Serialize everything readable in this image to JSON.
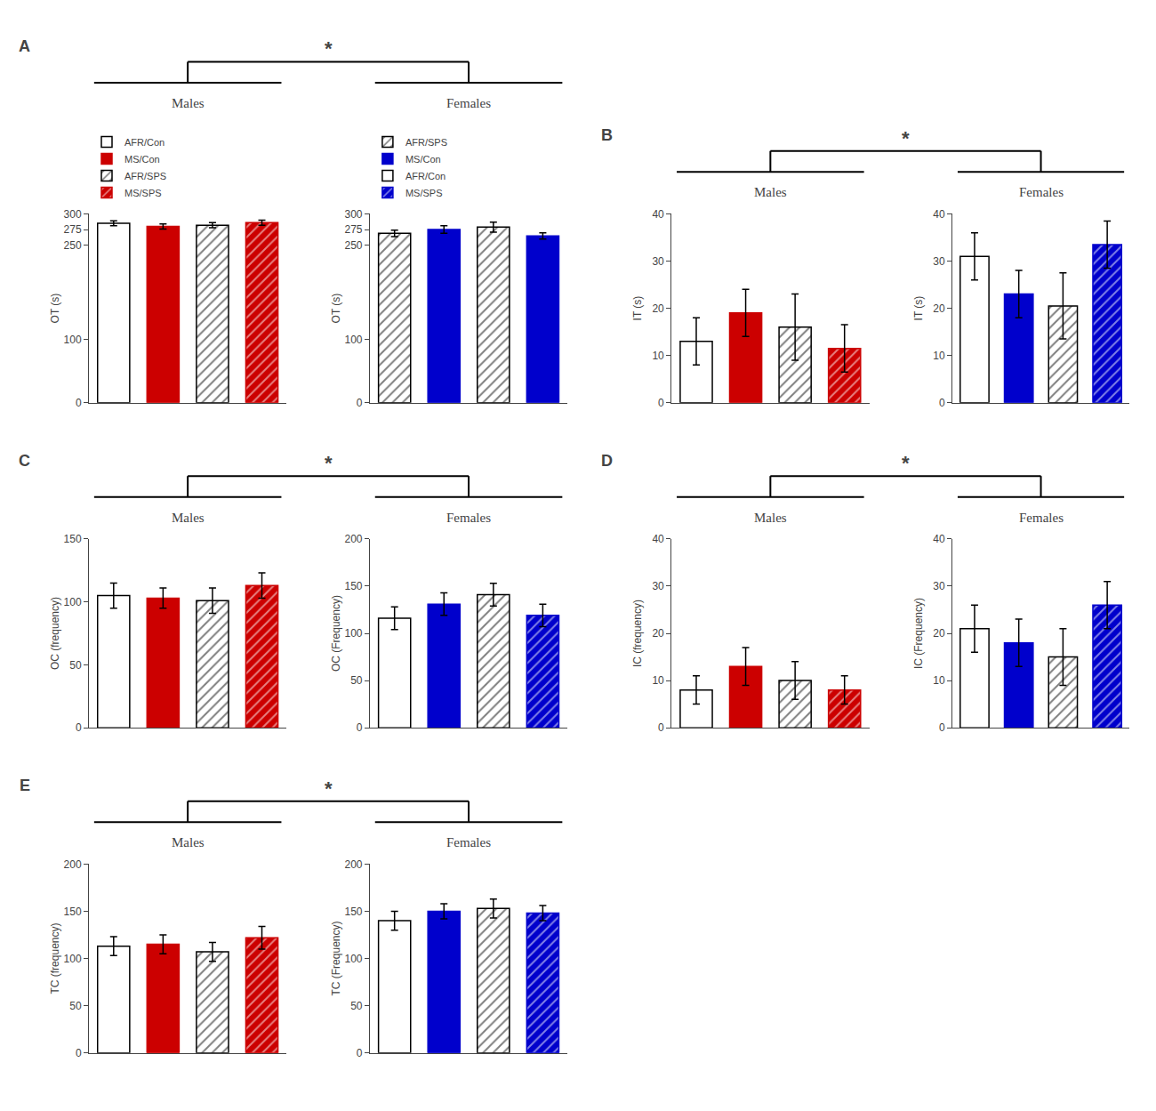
{
  "chart_data": [
    {
      "type": "bar",
      "title": "Males",
      "ylabel": "OT (s)",
      "categories": [
        null,
        null,
        null,
        null
      ],
      "ylim": [
        0,
        300
      ],
      "yticks": [
        0,
        100,
        250,
        275,
        300
      ],
      "grid": false,
      "tick_labels": "y",
      "legend": "top",
      "annotations": [
        "A",
        "*"
      ],
      "series": [
        {
          "name": "AFR/Con",
          "color": "white",
          "marker": "solid",
          "values": [
            285,
            null,
            null,
            null
          ],
          "errors": [
            4,
            null,
            null,
            null
          ]
        },
        {
          "name": "MS/Con",
          "color": "#cc0000",
          "marker": "solid",
          "values": [
            null,
            280,
            null,
            null
          ],
          "errors": [
            null,
            4,
            null,
            null
          ]
        },
        {
          "name": "AFR/SPS",
          "color": "white",
          "marker": "hatched",
          "values": [
            null,
            null,
            282,
            null
          ],
          "errors": [
            null,
            null,
            4,
            null
          ]
        },
        {
          "name": "MS/SPS",
          "color": "#cc0000",
          "marker": "hatched",
          "values": [
            null,
            null,
            null,
            286
          ],
          "errors": [
            null,
            null,
            null,
            4
          ]
        }
      ]
    },
    {
      "type": "bar",
      "title": "Females",
      "ylabel": "OT (s)",
      "categories": [
        null,
        null,
        null,
        null
      ],
      "ylim": [
        0,
        300
      ],
      "yticks": [
        0,
        100,
        250,
        275,
        300
      ],
      "grid": false,
      "tick_labels": "y",
      "legend": "top",
      "series": [
        {
          "name": "AFR/SPS",
          "color": "white",
          "marker": "hatched",
          "values": [
            269,
            null,
            279,
            null
          ],
          "errors": [
            5,
            null,
            8,
            null
          ]
        },
        {
          "name": "MS/Con",
          "color": "#0000cc",
          "marker": "solid",
          "values": [
            null,
            275,
            null,
            265
          ],
          "errors": [
            null,
            6,
            null,
            5
          ]
        },
        {
          "name": "AFR/Con",
          "color": "white",
          "marker": "solid",
          "values": [
            null,
            null,
            null,
            null
          ],
          "errors": [
            null,
            null,
            null,
            null
          ]
        },
        {
          "name": "MS/SPS",
          "color": "#0000cc",
          "marker": "hatched",
          "values": [
            null,
            null,
            null,
            null
          ],
          "errors": [
            null,
            null,
            null,
            null
          ]
        }
      ]
    },
    {
      "type": "bar",
      "title": "Males",
      "ylabel": "IT (s)",
      "categories": [
        null,
        null,
        null,
        null
      ],
      "ylim": [
        0,
        40
      ],
      "yticks": [
        0,
        10,
        20,
        30,
        40
      ],
      "grid": false,
      "tick_labels": "y",
      "annotations": [
        "B",
        "*"
      ],
      "series": [
        {
          "color": "white",
          "marker": "solid",
          "values": [
            13,
            null,
            null,
            null
          ],
          "errors": [
            5,
            null,
            null,
            null
          ]
        },
        {
          "color": "#cc0000",
          "marker": "solid",
          "values": [
            null,
            19,
            null,
            null
          ],
          "errors": [
            null,
            5,
            null,
            null
          ]
        },
        {
          "color": "white",
          "marker": "hatched",
          "values": [
            null,
            null,
            16,
            null
          ],
          "errors": [
            null,
            null,
            7,
            null
          ]
        },
        {
          "color": "#cc0000",
          "marker": "hatched",
          "values": [
            null,
            null,
            null,
            11.5
          ],
          "errors": [
            null,
            null,
            null,
            5
          ]
        }
      ]
    },
    {
      "type": "bar",
      "title": "Females",
      "ylabel": "IT (s)",
      "categories": [
        null,
        null,
        null,
        null
      ],
      "ylim": [
        0,
        40
      ],
      "yticks": [
        0,
        10,
        20,
        30,
        40
      ],
      "grid": false,
      "tick_labels": "y",
      "series": [
        {
          "color": "white",
          "marker": "solid",
          "values": [
            31,
            null,
            null,
            null
          ],
          "errors": [
            5,
            null,
            null,
            null
          ]
        },
        {
          "color": "#0000cc",
          "marker": "solid",
          "values": [
            null,
            23,
            null,
            null
          ],
          "errors": [
            null,
            5,
            null,
            null
          ]
        },
        {
          "color": "white",
          "marker": "hatched",
          "values": [
            null,
            null,
            20.5,
            null
          ],
          "errors": [
            null,
            null,
            7,
            null
          ]
        },
        {
          "color": "#0000cc",
          "marker": "hatched",
          "values": [
            null,
            null,
            null,
            33.5
          ],
          "errors": [
            null,
            null,
            null,
            5
          ]
        }
      ]
    },
    {
      "type": "bar",
      "title": "Males",
      "ylabel": "OC (frequency)",
      "categories": [
        null,
        null,
        null,
        null
      ],
      "ylim": [
        0,
        150
      ],
      "yticks": [
        0,
        50,
        100,
        150
      ],
      "grid": false,
      "tick_labels": "y",
      "annotations": [
        "C",
        "*"
      ],
      "series": [
        {
          "color": "white",
          "marker": "solid",
          "values": [
            105,
            null,
            null,
            null
          ],
          "errors": [
            10,
            null,
            null,
            null
          ]
        },
        {
          "color": "#cc0000",
          "marker": "solid",
          "values": [
            null,
            103,
            null,
            null
          ],
          "errors": [
            null,
            8,
            null,
            null
          ]
        },
        {
          "color": "white",
          "marker": "hatched",
          "values": [
            null,
            null,
            101,
            null
          ],
          "errors": [
            null,
            null,
            10,
            null
          ]
        },
        {
          "color": "#cc0000",
          "marker": "hatched",
          "values": [
            null,
            null,
            null,
            113
          ],
          "errors": [
            null,
            null,
            null,
            10
          ]
        }
      ]
    },
    {
      "type": "bar",
      "title": "Females",
      "ylabel": "OC (Frequency)",
      "categories": [
        null,
        null,
        null,
        null
      ],
      "ylim": [
        0,
        200
      ],
      "yticks": [
        0,
        50,
        100,
        150,
        200
      ],
      "grid": false,
      "tick_labels": "y",
      "series": [
        {
          "color": "white",
          "marker": "solid",
          "values": [
            116,
            null,
            null,
            null
          ],
          "errors": [
            12,
            null,
            null,
            null
          ]
        },
        {
          "color": "#0000cc",
          "marker": "solid",
          "values": [
            null,
            131,
            null,
            null
          ],
          "errors": [
            null,
            12,
            null,
            null
          ]
        },
        {
          "color": "white",
          "marker": "hatched",
          "values": [
            null,
            null,
            141,
            null
          ],
          "errors": [
            null,
            null,
            12,
            null
          ]
        },
        {
          "color": "#0000cc",
          "marker": "hatched",
          "values": [
            null,
            null,
            null,
            119
          ],
          "errors": [
            null,
            null,
            null,
            12
          ]
        }
      ]
    },
    {
      "type": "bar",
      "title": "Males",
      "ylabel": "IC (frequency)",
      "categories": [
        null,
        null,
        null,
        null
      ],
      "ylim": [
        0,
        40
      ],
      "yticks": [
        0,
        10,
        20,
        30,
        40
      ],
      "grid": false,
      "tick_labels": "y",
      "annotations": [
        "D",
        "*"
      ],
      "series": [
        {
          "color": "white",
          "marker": "solid",
          "values": [
            8,
            null,
            null,
            null
          ],
          "errors": [
            3,
            null,
            null,
            null
          ]
        },
        {
          "color": "#cc0000",
          "marker": "solid",
          "values": [
            null,
            13,
            null,
            null
          ],
          "errors": [
            null,
            4,
            null,
            null
          ]
        },
        {
          "color": "white",
          "marker": "hatched",
          "values": [
            null,
            null,
            10,
            null
          ],
          "errors": [
            null,
            null,
            4,
            null
          ]
        },
        {
          "color": "#cc0000",
          "marker": "hatched",
          "values": [
            null,
            null,
            null,
            8
          ],
          "errors": [
            null,
            null,
            null,
            3
          ]
        }
      ]
    },
    {
      "type": "bar",
      "title": "Females",
      "ylabel": "IC (Frequency)",
      "categories": [
        null,
        null,
        null,
        null
      ],
      "ylim": [
        0,
        40
      ],
      "yticks": [
        0,
        10,
        20,
        30,
        40
      ],
      "grid": false,
      "tick_labels": "y",
      "series": [
        {
          "color": "white",
          "marker": "solid",
          "values": [
            21,
            null,
            null,
            null
          ],
          "errors": [
            5,
            null,
            null,
            null
          ]
        },
        {
          "color": "#0000cc",
          "marker": "solid",
          "values": [
            null,
            18,
            null,
            null
          ],
          "errors": [
            null,
            5,
            null,
            null
          ]
        },
        {
          "color": "white",
          "marker": "hatched",
          "values": [
            null,
            null,
            15,
            null
          ],
          "errors": [
            null,
            null,
            6,
            null
          ]
        },
        {
          "color": "#0000cc",
          "marker": "hatched",
          "values": [
            null,
            null,
            null,
            26
          ],
          "errors": [
            null,
            null,
            null,
            5
          ]
        }
      ]
    },
    {
      "type": "bar",
      "title": "Males",
      "ylabel": "TC (frequency)",
      "categories": [
        null,
        null,
        null,
        null
      ],
      "ylim": [
        0,
        200
      ],
      "yticks": [
        0,
        50,
        100,
        150,
        200
      ],
      "grid": false,
      "tick_labels": "y",
      "annotations": [
        "E",
        "*"
      ],
      "series": [
        {
          "color": "white",
          "marker": "solid",
          "values": [
            113,
            null,
            null,
            null
          ],
          "errors": [
            10,
            null,
            null,
            null
          ]
        },
        {
          "color": "#cc0000",
          "marker": "solid",
          "values": [
            null,
            115,
            null,
            null
          ],
          "errors": [
            null,
            10,
            null,
            null
          ]
        },
        {
          "color": "white",
          "marker": "hatched",
          "values": [
            null,
            null,
            107,
            null
          ],
          "errors": [
            null,
            null,
            10,
            null
          ]
        },
        {
          "color": "#cc0000",
          "marker": "hatched",
          "values": [
            null,
            null,
            null,
            122
          ],
          "errors": [
            null,
            null,
            null,
            12
          ]
        }
      ]
    },
    {
      "type": "bar",
      "title": "Females",
      "ylabel": "TC (Frequency)",
      "categories": [
        null,
        null,
        null,
        null
      ],
      "ylim": [
        0,
        200
      ],
      "yticks": [
        0,
        50,
        100,
        150,
        200
      ],
      "grid": false,
      "tick_labels": "y",
      "series": [
        {
          "color": "white",
          "marker": "solid",
          "values": [
            140,
            null,
            null,
            null
          ],
          "errors": [
            10,
            null,
            null,
            null
          ]
        },
        {
          "color": "#0000cc",
          "marker": "solid",
          "values": [
            null,
            150,
            null,
            null
          ],
          "errors": [
            null,
            8,
            null,
            null
          ]
        },
        {
          "color": "white",
          "marker": "hatched",
          "values": [
            null,
            null,
            153,
            null
          ],
          "errors": [
            null,
            null,
            10,
            null
          ]
        },
        {
          "color": "#0000cc",
          "marker": "hatched",
          "values": [
            null,
            null,
            null,
            148
          ],
          "errors": [
            null,
            null,
            null,
            8
          ]
        }
      ]
    }
  ]
}
